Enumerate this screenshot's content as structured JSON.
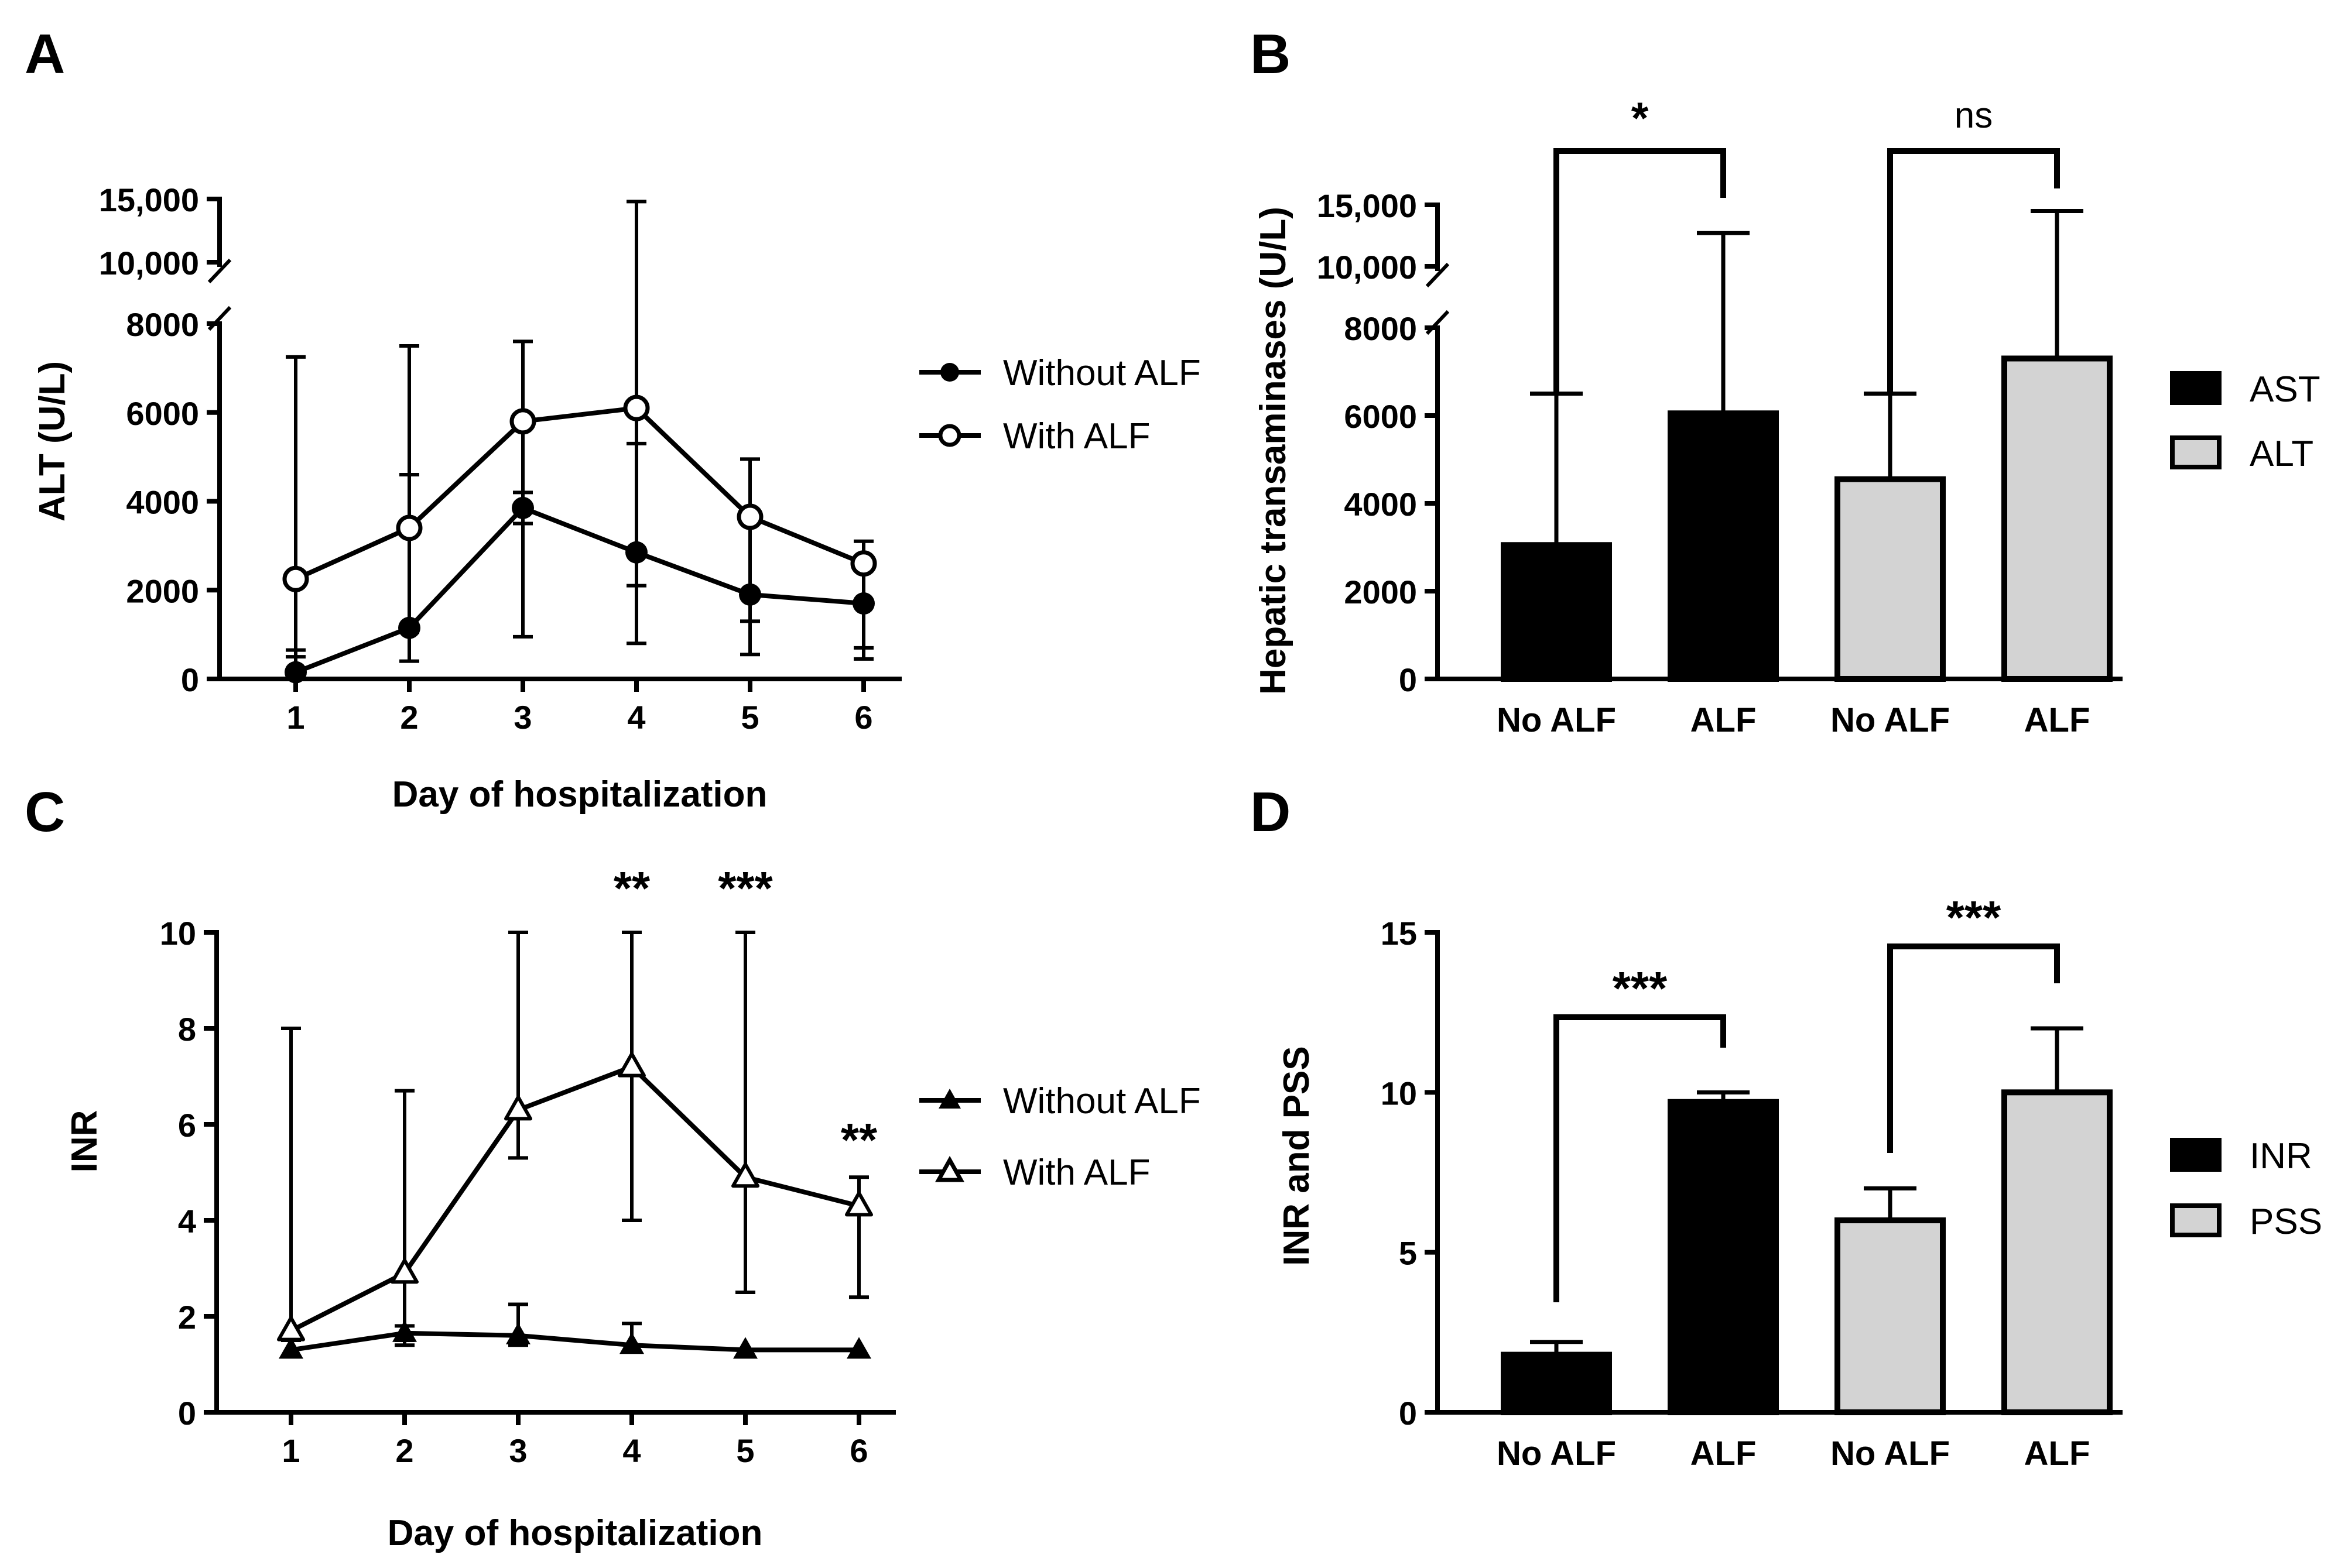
{
  "chart_data": [
    {
      "panel": "A",
      "type": "line",
      "title": "",
      "xlabel": "Day of hospitalization",
      "ylabel": "ALT (U/L)",
      "x": [
        1,
        2,
        3,
        4,
        5,
        6
      ],
      "x_tick_labels": [
        "1",
        "2",
        "3",
        "4",
        "5",
        "6"
      ],
      "y_axis_break": true,
      "y_lower_range": [
        0,
        8000
      ],
      "y_lower_ticks": [
        "0",
        "2000",
        "4000",
        "6000",
        "8000"
      ],
      "y_upper_range": [
        10000,
        15000
      ],
      "y_upper_ticks": [
        "10,000",
        "15,000"
      ],
      "series": [
        {
          "name": "Without ALF",
          "marker": "filled-circle",
          "values": [
            150,
            1150,
            3850,
            2850,
            1900,
            1700
          ],
          "err_low": [
            0,
            400,
            950,
            800,
            550,
            450
          ],
          "err_high": [
            650,
            4600,
            4200,
            5300,
            3700,
            2700
          ]
        },
        {
          "name": "With ALF",
          "marker": "open-circle",
          "values": [
            2250,
            3400,
            5800,
            6100,
            3650,
            2600
          ],
          "err_low": [
            500,
            1050,
            3500,
            2100,
            1300,
            700
          ],
          "err_high": [
            7250,
            7500,
            7600,
            14800,
            4950,
            3100
          ]
        }
      ],
      "legend_position": "right"
    },
    {
      "panel": "B",
      "type": "bar",
      "ylabel": "Hepatic transaminases (U/L)",
      "categories": [
        "No ALF",
        "ALF",
        "No ALF",
        "ALF"
      ],
      "groups": [
        "AST",
        "AST",
        "ALT",
        "ALT"
      ],
      "values": [
        3050,
        6050,
        4550,
        7300
      ],
      "err_high": [
        6500,
        12700,
        6500,
        14500
      ],
      "y_axis_break": true,
      "y_lower_range": [
        0,
        8000
      ],
      "y_lower_ticks": [
        "0",
        "2000",
        "4000",
        "6000",
        "8000"
      ],
      "y_upper_range": [
        10000,
        15000
      ],
      "y_upper_ticks": [
        "10,000",
        "15,000"
      ],
      "legend": [
        {
          "name": "AST",
          "color": "#000000"
        },
        {
          "name": "ALT",
          "color": "#d3d3d3"
        }
      ],
      "significance": [
        {
          "pair": [
            0,
            1
          ],
          "label": "*"
        },
        {
          "pair": [
            2,
            3
          ],
          "label": "ns"
        }
      ],
      "legend_position": "right"
    },
    {
      "panel": "C",
      "type": "line",
      "xlabel": "Day of hospitalization",
      "ylabel": "INR",
      "x": [
        1,
        2,
        3,
        4,
        5,
        6
      ],
      "x_tick_labels": [
        "1",
        "2",
        "3",
        "4",
        "5",
        "6"
      ],
      "ylim": [
        0,
        10
      ],
      "y_ticks": [
        "0",
        "2",
        "4",
        "6",
        "8",
        "10"
      ],
      "series": [
        {
          "name": "Without ALF",
          "marker": "filled-triangle",
          "values": [
            1.3,
            1.65,
            1.6,
            1.4,
            1.3,
            1.3
          ],
          "err_low": [
            1.3,
            1.4,
            1.4,
            1.4,
            1.3,
            1.3
          ],
          "err_high": [
            1.3,
            1.8,
            2.25,
            1.85,
            1.3,
            1.3
          ]
        },
        {
          "name": "With ALF",
          "marker": "open-triangle",
          "values": [
            1.7,
            2.9,
            6.3,
            7.2,
            4.9,
            4.3
          ],
          "err_low": [
            1.5,
            1.5,
            5.3,
            4.0,
            2.5,
            2.4
          ],
          "err_high": [
            8.0,
            6.7,
            10.0,
            10.0,
            10.0,
            4.9
          ]
        }
      ],
      "significance": [
        {
          "x": 4,
          "label": "**"
        },
        {
          "x": 5,
          "label": "***"
        },
        {
          "x": 6,
          "label": "**"
        }
      ],
      "legend_position": "right"
    },
    {
      "panel": "D",
      "type": "bar",
      "ylabel": "INR and PSS",
      "categories": [
        "No ALF",
        "ALF",
        "No ALF",
        "ALF"
      ],
      "groups": [
        "INR",
        "INR",
        "PSS",
        "PSS"
      ],
      "values": [
        1.8,
        9.7,
        6.0,
        10.0
      ],
      "err_high": [
        2.2,
        10.0,
        7.0,
        12.0
      ],
      "ylim": [
        0,
        15
      ],
      "y_ticks": [
        "0",
        "5",
        "10",
        "15"
      ],
      "legend": [
        {
          "name": "INR",
          "color": "#000000"
        },
        {
          "name": "PSS",
          "color": "#d3d3d3"
        }
      ],
      "significance": [
        {
          "pair": [
            0,
            1
          ],
          "label": "***"
        },
        {
          "pair": [
            2,
            3
          ],
          "label": "***"
        }
      ],
      "legend_position": "right"
    }
  ]
}
